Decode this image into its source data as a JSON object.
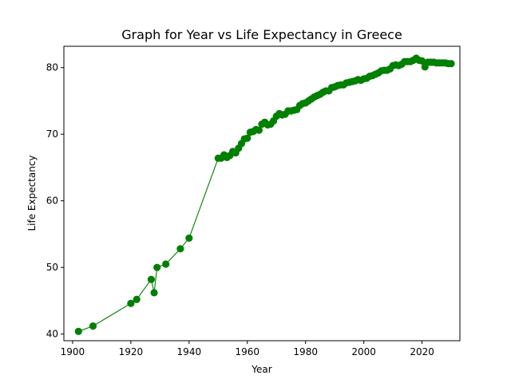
{
  "chart_data": {
    "type": "line",
    "title": "Graph for Year vs Life Expectancy in Greece",
    "xlabel": "Year",
    "ylabel": "Life Expectancy",
    "xlim": [
      1897,
      2033
    ],
    "ylim": [
      39,
      83.2
    ],
    "xticks": [
      1900,
      1920,
      1940,
      1960,
      1980,
      2000,
      2020
    ],
    "yticks": [
      40,
      50,
      60,
      70,
      80
    ],
    "grid": false,
    "legend": "none",
    "colors": {
      "series": "#008000",
      "axes": "#000000",
      "background": "#ffffff"
    },
    "marker": "circle",
    "series": [
      {
        "x": [
          1902,
          1907,
          1920,
          1922,
          1927,
          1928,
          1929,
          1932,
          1937,
          1940,
          1950,
          1951,
          1952,
          1953,
          1954,
          1955,
          1956,
          1957,
          1958,
          1959,
          1960,
          1961,
          1962,
          1963,
          1964,
          1965,
          1966,
          1967,
          1968,
          1969,
          1970,
          1971,
          1972,
          1973,
          1974,
          1975,
          1976,
          1977,
          1978,
          1979,
          1980,
          1981,
          1982,
          1983,
          1984,
          1985,
          1986,
          1987,
          1988,
          1989,
          1990,
          1991,
          1992,
          1993,
          1994,
          1995,
          1996,
          1997,
          1998,
          1999,
          2000,
          2001,
          2002,
          2003,
          2004,
          2005,
          2006,
          2007,
          2008,
          2009,
          2010,
          2011,
          2012,
          2013,
          2014,
          2015,
          2016,
          2017,
          2018,
          2019,
          2020,
          2021,
          2022,
          2023,
          2024,
          2025,
          2026,
          2027,
          2028,
          2029,
          2030
        ],
        "y": [
          40.4,
          41.2,
          44.6,
          45.2,
          48.2,
          46.2,
          50.0,
          50.5,
          52.8,
          54.4,
          66.4,
          66.4,
          66.9,
          66.5,
          66.8,
          67.4,
          67.2,
          67.9,
          68.6,
          69.3,
          69.4,
          70.3,
          70.4,
          70.7,
          70.6,
          71.5,
          71.8,
          71.4,
          71.5,
          72.0,
          72.7,
          73.1,
          72.9,
          73.0,
          73.5,
          73.5,
          73.6,
          73.7,
          74.3,
          74.6,
          74.7,
          75.0,
          75.3,
          75.6,
          75.8,
          76.0,
          76.3,
          76.5,
          76.5,
          77.0,
          77.1,
          77.3,
          77.4,
          77.4,
          77.7,
          77.8,
          77.9,
          78.0,
          78.2,
          78.1,
          78.3,
          78.4,
          78.7,
          78.8,
          79.0,
          79.2,
          79.5,
          79.6,
          79.6,
          79.8,
          80.3,
          80.4,
          80.3,
          80.5,
          80.9,
          80.9,
          80.9,
          81.1,
          81.4,
          81.1,
          81.0,
          80.1,
          80.8,
          80.8,
          80.8,
          80.7,
          80.7,
          80.7,
          80.7,
          80.6,
          80.6
        ]
      }
    ]
  }
}
